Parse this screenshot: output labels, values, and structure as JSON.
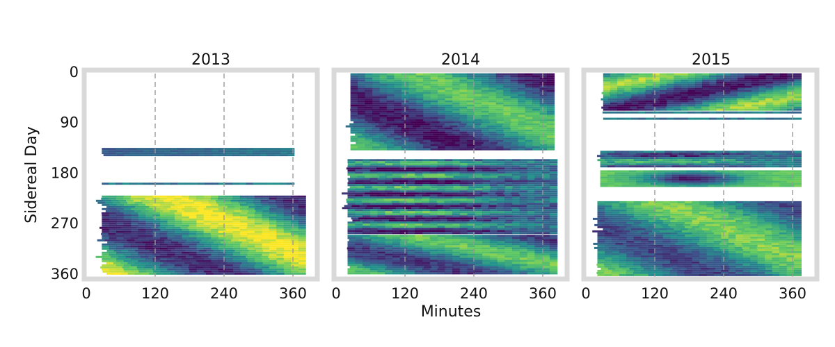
{
  "chart_data": {
    "type": "heatmap",
    "xlabel": "Minutes",
    "ylabel": "Sidereal Day",
    "xlim": [
      0,
      400
    ],
    "ylim": [
      365,
      0
    ],
    "x_ticks": [
      0,
      120,
      240,
      360
    ],
    "y_ticks": [
      0,
      90,
      180,
      270,
      360
    ],
    "colormap": "viridis",
    "colormap_stops": [
      "#440154",
      "#3b528b",
      "#21918c",
      "#5ec962",
      "#fde725"
    ],
    "frame_color": "#d9d9d9",
    "dashed_gridline_color": "#999999",
    "panels": [
      {
        "title": "2013",
        "vlines": [
          120,
          240,
          360
        ],
        "blocks": [
          {
            "y": [
              135,
              150
            ],
            "x": [
              27,
              362
            ],
            "pattern": "ramp",
            "level": 0.28,
            "dir": 1,
            "amp": 0.12
          },
          {
            "y": [
              197,
              203
            ],
            "x": [
              27,
              362
            ],
            "pattern": "flat",
            "level": 0.4,
            "sparse": true
          },
          {
            "y": [
              220,
              360
            ],
            "x": [
              27,
              382
            ],
            "pattern": "diagonal",
            "level": 0.55,
            "dir": 1,
            "amp": 0.45
          }
        ]
      },
      {
        "title": "2014",
        "vlines": [
          120,
          240,
          360
        ],
        "blocks": [
          {
            "y": [
              2,
              140
            ],
            "x": [
              25,
              380
            ],
            "pattern": "diagonal",
            "level": 0.4,
            "dir": 1,
            "amp": 0.35
          },
          {
            "y": [
              155,
              290
            ],
            "x": [
              20,
              385
            ],
            "pattern": "bands",
            "level": 0.35,
            "amp": 0.4
          },
          {
            "y": [
              290,
              360
            ],
            "x": [
              20,
              385
            ],
            "pattern": "diagonal",
            "level": 0.45,
            "dir": 1,
            "amp": 0.3
          }
        ]
      },
      {
        "title": "2015",
        "vlines": [
          120,
          240,
          360
        ],
        "blocks": [
          {
            "y": [
              2,
              70
            ],
            "x": [
              30,
              375
            ],
            "pattern": "diagonal",
            "level": 0.45,
            "dir": -1,
            "amp": 0.4
          },
          {
            "y": [
              70,
              90
            ],
            "x": [
              30,
              375
            ],
            "pattern": "flat",
            "level": 0.4,
            "sparse": true
          },
          {
            "y": [
              140,
              170
            ],
            "x": [
              25,
              375
            ],
            "pattern": "bands",
            "level": 0.4,
            "amp": 0.3
          },
          {
            "y": [
              175,
              205
            ],
            "x": [
              25,
              375
            ],
            "pattern": "spot",
            "level": 0.45,
            "amp": 0.5
          },
          {
            "y": [
              230,
              362
            ],
            "x": [
              20,
              375
            ],
            "pattern": "diagonal",
            "level": 0.5,
            "dir": 1,
            "amp": 0.3
          }
        ]
      }
    ]
  }
}
